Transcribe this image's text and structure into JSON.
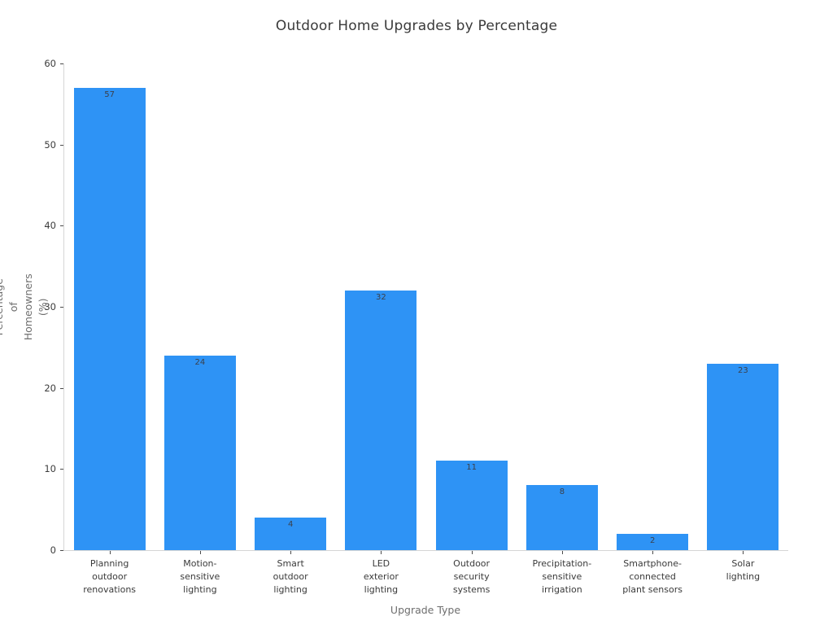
{
  "chart_data": {
    "type": "bar",
    "title": "Outdoor Home Upgrades by Percentage",
    "xlabel": "Upgrade Type",
    "ylabel": "Percentage of\nHomeowners (%)",
    "categories": [
      "Planning\noutdoor\nrenovations",
      "Motion-\nsensitive\nlighting",
      "Smart\noutdoor\nlighting",
      "LED\nexterior\nlighting",
      "Outdoor\nsecurity\nsystems",
      "Precipitation-\nsensitive\nirrigation",
      "Smartphone-\nconnected\nplant sensors",
      "Solar\nlighting"
    ],
    "values": [
      57,
      24,
      4,
      32,
      11,
      8,
      2,
      23
    ],
    "ylim": [
      0,
      60
    ],
    "yticks": [
      0,
      10,
      20,
      30,
      40,
      50,
      60
    ],
    "grid": false,
    "legend": "none",
    "bar_color": "#2E93F5",
    "value_label_color": "#3b404b",
    "background_color": "#ffffff"
  }
}
